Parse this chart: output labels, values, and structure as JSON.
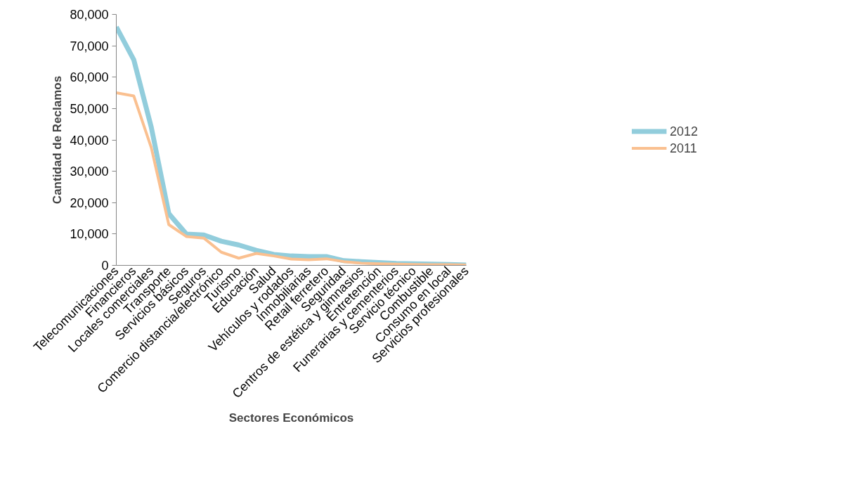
{
  "chart_data": {
    "type": "line",
    "xlabel": "Sectores Económicos",
    "ylabel": "Cantidad de Reclamos",
    "categories": [
      "Telecomunicaciones",
      "Financieros",
      "Locales comerciales",
      "Transporte",
      "Servicios básicos",
      "Seguros",
      "Comercio distancia/electrónico",
      "Turismo",
      "Educación",
      "Salud",
      "Vehículos y rodados",
      "Inmobiliarias",
      "Retail ferretero",
      "Seguridad",
      "Centros de estética y gimnasios",
      "Entretención",
      "Funerarias y cementerios",
      "Servicio técnico",
      "Combustible",
      "Consumo en local",
      "Servicios profesionales"
    ],
    "series": [
      {
        "name": "2012",
        "color": "#92cddc",
        "values": [
          76000,
          65500,
          44000,
          16500,
          10000,
          9700,
          7700,
          6500,
          4800,
          3500,
          3000,
          2800,
          2800,
          1500,
          1200,
          900,
          600,
          500,
          400,
          300,
          100
        ]
      },
      {
        "name": "2011",
        "color": "#fac090",
        "values": [
          55000,
          54000,
          37500,
          13000,
          9200,
          8700,
          4200,
          2300,
          3800,
          3000,
          2000,
          1800,
          2100,
          1200,
          700,
          500,
          400,
          300,
          200,
          200,
          100
        ]
      }
    ],
    "ylim": [
      0,
      80000
    ],
    "yticks": [
      {
        "value": 0,
        "label": "0"
      },
      {
        "value": 10000,
        "label": "10,000"
      },
      {
        "value": 20000,
        "label": "20,000"
      },
      {
        "value": 30000,
        "label": "30,000"
      },
      {
        "value": 40000,
        "label": "40,000"
      },
      {
        "value": 50000,
        "label": "50,000"
      },
      {
        "value": 60000,
        "label": "60,000"
      },
      {
        "value": 70000,
        "label": "70,000"
      },
      {
        "value": 80000,
        "label": "80,000"
      }
    ],
    "grid": false,
    "legend": "right",
    "marker": "none",
    "line_style": "solid"
  }
}
